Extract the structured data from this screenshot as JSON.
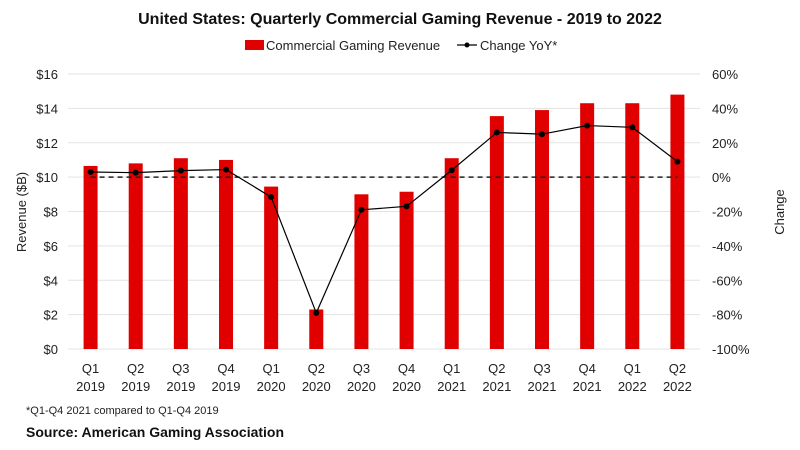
{
  "chart_data": {
    "type": "bar",
    "title": "United States: Quarterly Commercial Gaming Revenue - 2019 to 2022",
    "categories": [
      [
        "Q1",
        "2019"
      ],
      [
        "Q2",
        "2019"
      ],
      [
        "Q3",
        "2019"
      ],
      [
        "Q4",
        "2019"
      ],
      [
        "Q1",
        "2020"
      ],
      [
        "Q2",
        "2020"
      ],
      [
        "Q3",
        "2020"
      ],
      [
        "Q4",
        "2020"
      ],
      [
        "Q1",
        "2021"
      ],
      [
        "Q2",
        "2021"
      ],
      [
        "Q3",
        "2021"
      ],
      [
        "Q4",
        "2021"
      ],
      [
        "Q1",
        "2022"
      ],
      [
        "Q2",
        "2022"
      ]
    ],
    "series": [
      {
        "name": "Commercial Gaming Revenue",
        "type": "bar",
        "axis": "left",
        "color": "#e00000",
        "values": [
          10.65,
          10.8,
          11.1,
          11.0,
          9.45,
          2.3,
          9.0,
          9.15,
          11.1,
          13.55,
          13.9,
          14.3,
          14.3,
          14.8
        ]
      },
      {
        "name": "Change YoY*",
        "type": "line",
        "axis": "right",
        "color": "#000000",
        "values": [
          3,
          2.6,
          3.8,
          4.4,
          -11.6,
          -79,
          -19,
          -17,
          4,
          26,
          25,
          30,
          29,
          9
        ]
      }
    ],
    "ylabel": "Revenue ($B)",
    "ylabel_right": "Change",
    "ylim": [
      0,
      16
    ],
    "ylim_right": [
      -100,
      60
    ],
    "yticks": [
      "$0",
      "$2",
      "$4",
      "$6",
      "$8",
      "$10",
      "$12",
      "$14",
      "$16"
    ],
    "yticks_right": [
      "-100%",
      "-80%",
      "-60%",
      "-40%",
      "-20%",
      "0%",
      "20%",
      "40%",
      "60%"
    ],
    "reference_line": {
      "axis": "right",
      "value": 0,
      "style": "dashed"
    },
    "grid": true,
    "legend": "top-center",
    "footnote": "*Q1-Q4 2021 compared to Q1-Q4 2019",
    "source": "Source: American Gaming Association"
  }
}
